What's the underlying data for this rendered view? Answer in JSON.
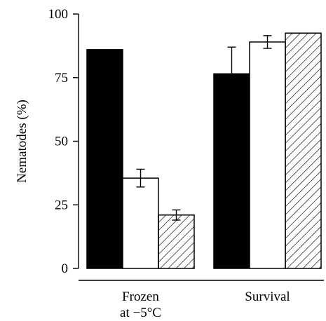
{
  "chart_data": {
    "type": "bar",
    "title": "",
    "xlabel": "",
    "ylabel": "Nematodes (%)",
    "ylim": [
      0,
      100
    ],
    "yticks": [
      "0",
      "25",
      "50",
      "75",
      "100"
    ],
    "categories": [
      {
        "lines": [
          "Frozen",
          "at −5°C"
        ]
      },
      {
        "lines": [
          "Survival"
        ]
      }
    ],
    "series": [
      {
        "fill": "solid",
        "color": "#000000",
        "values": [
          86,
          76.5
        ],
        "errors": [
          null,
          10.5
        ]
      },
      {
        "fill": "open",
        "color": "#ffffff",
        "values": [
          35.5,
          89
        ],
        "errors": [
          3.5,
          2.5
        ]
      },
      {
        "fill": "hatched",
        "color": "#ffffff",
        "values": [
          21,
          92.5
        ],
        "errors": [
          2,
          null
        ]
      }
    ],
    "grid": false,
    "legend": "none"
  }
}
